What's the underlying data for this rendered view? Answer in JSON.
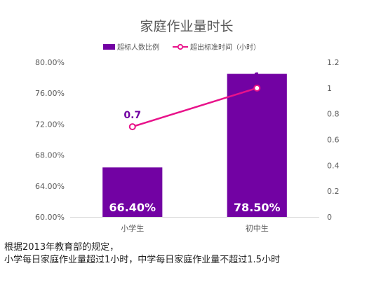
{
  "chart_data": {
    "type": "bar",
    "title": "家庭作业量时长",
    "categories": [
      "小学生",
      "初中生"
    ],
    "series": [
      {
        "name": "超标人数比例",
        "kind": "bar",
        "axis": "left",
        "values": [
          66.4,
          78.5
        ],
        "labels": [
          "66.40%",
          "78.50%"
        ],
        "color": "#7202A3"
      },
      {
        "name": "超出标准时间（小时）",
        "kind": "line",
        "axis": "right",
        "values": [
          0.7,
          1
        ],
        "labels": [
          "0.7",
          "1"
        ],
        "color": "#E8128A"
      }
    ],
    "y_left": {
      "min": 60,
      "max": 80,
      "step": 4,
      "ticks": [
        "60.00%",
        "64.00%",
        "68.00%",
        "72.00%",
        "76.00%",
        "80.00%"
      ]
    },
    "y_right": {
      "min": 0,
      "max": 1.2,
      "step": 0.2,
      "ticks": [
        "0",
        "0.2",
        "0.4",
        "0.6",
        "0.8",
        "1",
        "1.2"
      ]
    },
    "legend_position": "top-center",
    "grid": false
  },
  "note": {
    "line1": "根据2013年教育部的规定，",
    "line2": "小学每日家庭作业量超过1小时，中学每日家庭作业量不超过1.5小时"
  }
}
